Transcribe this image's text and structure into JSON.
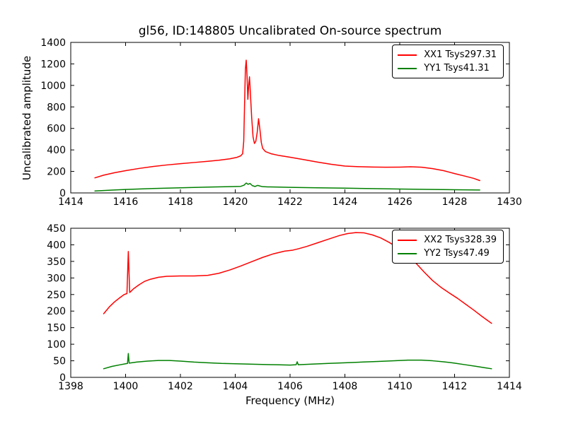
{
  "title": "gl56, ID:148805 Uncalibrated On-source spectrum",
  "xlabel": "Frequency (MHz)",
  "ylabel": "Uncalibrated amplitude",
  "frame_color": "#000000",
  "background": "#ffffff",
  "chart_data": [
    {
      "type": "line",
      "subplot": "top",
      "xlim": [
        1414,
        1430
      ],
      "ylim": [
        0,
        1400
      ],
      "xticks": [
        1414,
        1416,
        1418,
        1420,
        1422,
        1424,
        1426,
        1428,
        1430
      ],
      "yticks": [
        0,
        200,
        400,
        600,
        800,
        1000,
        1200,
        1400
      ],
      "grid": false,
      "legend_position": "upper right",
      "series": [
        {
          "name": "XX1 Tsys297.31",
          "color": "#ff0000",
          "x": [
            1414.88,
            1415.2,
            1415.6,
            1416.0,
            1416.5,
            1417.0,
            1417.5,
            1418.0,
            1418.5,
            1419.0,
            1419.4,
            1419.8,
            1420.05,
            1420.2,
            1420.27,
            1420.31,
            1420.34,
            1420.37,
            1420.4,
            1420.43,
            1420.46,
            1420.49,
            1420.52,
            1420.56,
            1420.6,
            1420.65,
            1420.7,
            1420.75,
            1420.8,
            1420.85,
            1420.9,
            1420.95,
            1421.0,
            1421.1,
            1421.3,
            1421.6,
            1422.0,
            1422.5,
            1423.0,
            1423.5,
            1424.0,
            1424.5,
            1425.0,
            1425.5,
            1426.0,
            1426.4,
            1426.8,
            1427.2,
            1427.6,
            1428.0,
            1428.4,
            1428.7,
            1428.92
          ],
          "y": [
            140,
            165,
            188,
            207,
            228,
            246,
            260,
            272,
            283,
            294,
            304,
            317,
            330,
            345,
            365,
            480,
            820,
            1150,
            1235,
            1090,
            870,
            1000,
            1080,
            890,
            700,
            520,
            460,
            480,
            560,
            690,
            590,
            470,
            415,
            385,
            365,
            348,
            332,
            310,
            287,
            266,
            250,
            244,
            241,
            239,
            240,
            243,
            239,
            226,
            207,
            180,
            155,
            135,
            115
          ]
        },
        {
          "name": "YY1 Tsys41.31",
          "color": "#008000",
          "x": [
            1414.88,
            1415.5,
            1416.0,
            1417.0,
            1418.0,
            1419.0,
            1419.8,
            1420.2,
            1420.32,
            1420.4,
            1420.47,
            1420.54,
            1420.62,
            1420.72,
            1420.82,
            1420.9,
            1421.0,
            1421.2,
            1421.6,
            1422.0,
            1423.0,
            1424.0,
            1425.0,
            1426.0,
            1427.0,
            1428.0,
            1428.92
          ],
          "y": [
            18,
            26,
            32,
            41,
            48,
            54,
            58,
            61,
            72,
            92,
            80,
            88,
            68,
            60,
            70,
            64,
            58,
            56,
            54,
            52,
            48,
            44,
            40,
            36,
            33,
            30,
            27
          ]
        }
      ]
    },
    {
      "type": "line",
      "subplot": "bottom",
      "xlim": [
        1398,
        1414
      ],
      "ylim": [
        0,
        450
      ],
      "xticks": [
        1398,
        1400,
        1402,
        1404,
        1406,
        1408,
        1410,
        1412,
        1414
      ],
      "yticks": [
        0,
        50,
        100,
        150,
        200,
        250,
        300,
        350,
        400,
        450
      ],
      "grid": false,
      "legend_position": "upper right",
      "series": [
        {
          "name": "XX2 Tsys328.39",
          "color": "#ff0000",
          "x": [
            1399.2,
            1399.4,
            1399.6,
            1399.8,
            1399.95,
            1400.05,
            1400.1,
            1400.15,
            1400.3,
            1400.5,
            1400.7,
            1400.9,
            1401.2,
            1401.5,
            1402.0,
            1402.5,
            1403.0,
            1403.4,
            1403.8,
            1404.2,
            1404.6,
            1405.0,
            1405.4,
            1405.8,
            1406.1,
            1406.3,
            1406.6,
            1407.0,
            1407.4,
            1407.8,
            1408.1,
            1408.4,
            1408.7,
            1409.0,
            1409.3,
            1409.6,
            1410.0,
            1410.3,
            1410.6,
            1410.9,
            1411.2,
            1411.5,
            1411.8,
            1412.1,
            1412.4,
            1412.7,
            1413.0,
            1413.2,
            1413.35
          ],
          "y": [
            192,
            212,
            228,
            241,
            250,
            253,
            380,
            256,
            268,
            280,
            290,
            296,
            302,
            305,
            306,
            306,
            308,
            314,
            324,
            336,
            349,
            362,
            373,
            381,
            384,
            388,
            395,
            406,
            417,
            428,
            434,
            437,
            436,
            430,
            421,
            408,
            388,
            368,
            344,
            317,
            292,
            272,
            255,
            239,
            221,
            203,
            184,
            172,
            163
          ]
        },
        {
          "name": "YY2 Tsys47.49",
          "color": "#008000",
          "x": [
            1399.2,
            1399.5,
            1399.8,
            1400.0,
            1400.07,
            1400.1,
            1400.13,
            1400.4,
            1400.8,
            1401.2,
            1401.6,
            1402.0,
            1402.5,
            1403.0,
            1403.5,
            1404.0,
            1404.5,
            1405.0,
            1405.5,
            1406.0,
            1406.22,
            1406.26,
            1406.3,
            1406.8,
            1407.4,
            1408.0,
            1408.6,
            1409.2,
            1409.8,
            1410.3,
            1410.8,
            1411.2,
            1411.6,
            1412.0,
            1412.4,
            1412.8,
            1413.1,
            1413.35
          ],
          "y": [
            26,
            33,
            38,
            41,
            42,
            72,
            43,
            46,
            49,
            51,
            51,
            49,
            46,
            44,
            42,
            41,
            40,
            39,
            38,
            37,
            38,
            47,
            38,
            40,
            42,
            44,
            46,
            48,
            50,
            52,
            52,
            50,
            47,
            43,
            38,
            33,
            29,
            26
          ]
        }
      ]
    }
  ]
}
